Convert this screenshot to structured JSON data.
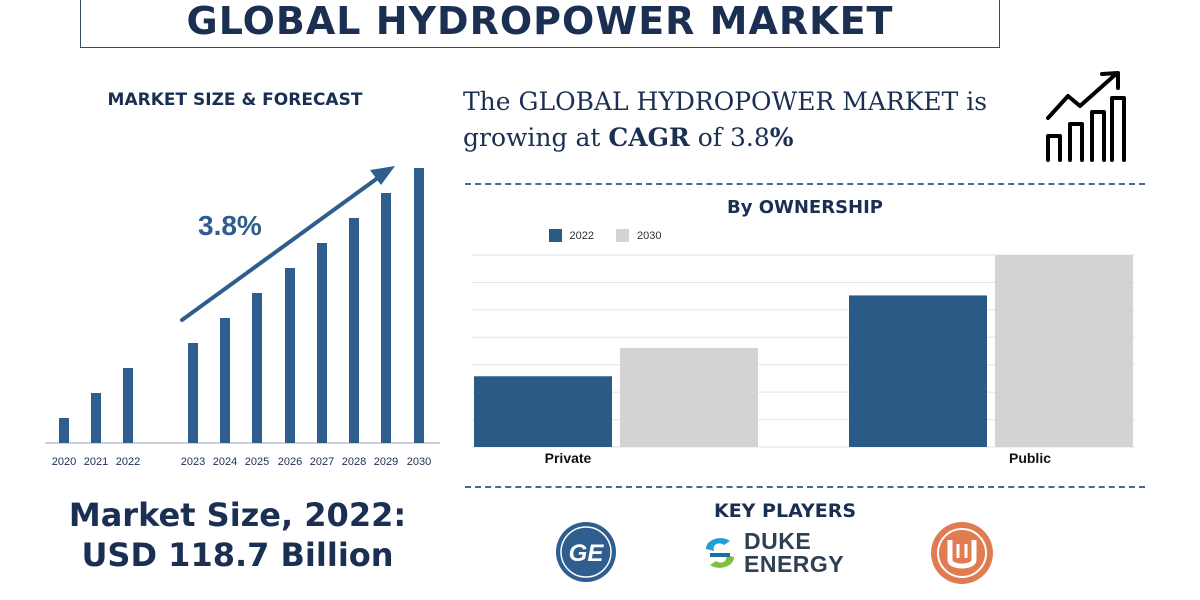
{
  "title": "GLOBAL HYDROPOWER MARKET",
  "market_heading": "MARKET SIZE & FORECAST",
  "cagr_statement": {
    "prefix": "The GLOBAL HYDROPOWER MARKET is growing at ",
    "cagr_word": "CAGR",
    "mid": " of 3.8",
    "percent": "%"
  },
  "ownership_heading": "By OWNERSHIP",
  "key_players_heading": "KEY PLAYERS",
  "market_size": {
    "line1": "Market Size, 2022:",
    "line2": "USD 118.7 Billion"
  },
  "logos": [
    {
      "name": "ge-logo",
      "text": "GE"
    },
    {
      "name": "duke-energy-logo",
      "line1": "DUKE",
      "line2": "ENERGY"
    },
    {
      "name": "third-company-logo"
    }
  ],
  "colors": {
    "navy": "#1a2f52",
    "bar_blue": "#2e5d8e",
    "bar_2022": "#2c5a87",
    "bar_2030": "#d3d3d3",
    "accent_orange": "#e07b52",
    "duke_blue": "#1ea0d8",
    "duke_green": "#7fbf3f"
  },
  "chart_data": [
    {
      "type": "bar",
      "title": "MARKET SIZE & FORECAST",
      "categories": [
        "2020",
        "2021",
        "2022",
        "2023",
        "2024",
        "2025",
        "2026",
        "2027",
        "2028",
        "2029",
        "2030"
      ],
      "values": [
        1,
        2,
        3,
        4,
        5,
        6,
        7,
        8,
        9,
        10,
        11
      ],
      "annotation": "3.8%",
      "ylim": [
        0,
        11
      ]
    },
    {
      "type": "bar",
      "title": "By OWNERSHIP",
      "categories": [
        "Private",
        "Public"
      ],
      "series": [
        {
          "name": "2022",
          "values": [
            70,
            150
          ]
        },
        {
          "name": "2030",
          "values": [
            98,
            190
          ]
        }
      ],
      "ylim": [
        0,
        190
      ],
      "grid": true,
      "legend": "top-center"
    }
  ]
}
